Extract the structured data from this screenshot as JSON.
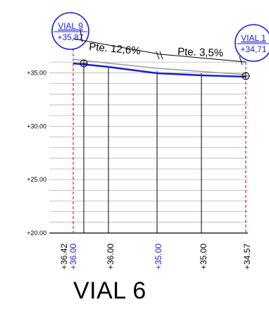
{
  "title": "VIAL 6",
  "colors": {
    "grid": "#b5b5b5",
    "profile_design": "#1c1cdc",
    "terrain": "#9a9a9a",
    "boundary": "#e01e1e",
    "text": "#000000",
    "blue_text": "#1c1cdc"
  },
  "y_axis": {
    "ticks": [
      {
        "value": 35.0,
        "label": "+35.00"
      },
      {
        "value": 30.0,
        "label": "+30.00"
      },
      {
        "value": 25.0,
        "label": "+25.00"
      },
      {
        "value": 20.0,
        "label": "+20.00"
      }
    ],
    "range": [
      20.0,
      37.2
    ]
  },
  "markers": {
    "left": {
      "name": "VIAL 9",
      "elevation": "+35,87"
    },
    "right": {
      "name": "VIAL 1",
      "elevation": "+34,71"
    }
  },
  "slopes": [
    {
      "label": "Pte. 12,6%"
    },
    {
      "label": "Pte. 3,5%"
    }
  ],
  "stations": [
    {
      "label": "+36.42",
      "color": "black"
    },
    {
      "label": "+36.00",
      "color": "blue"
    },
    {
      "label": "+36.00",
      "color": "black"
    },
    {
      "label": "+35.00",
      "color": "blue"
    },
    {
      "label": "+35.00",
      "color": "black"
    },
    {
      "label": "+34.57",
      "color": "black"
    }
  ]
}
